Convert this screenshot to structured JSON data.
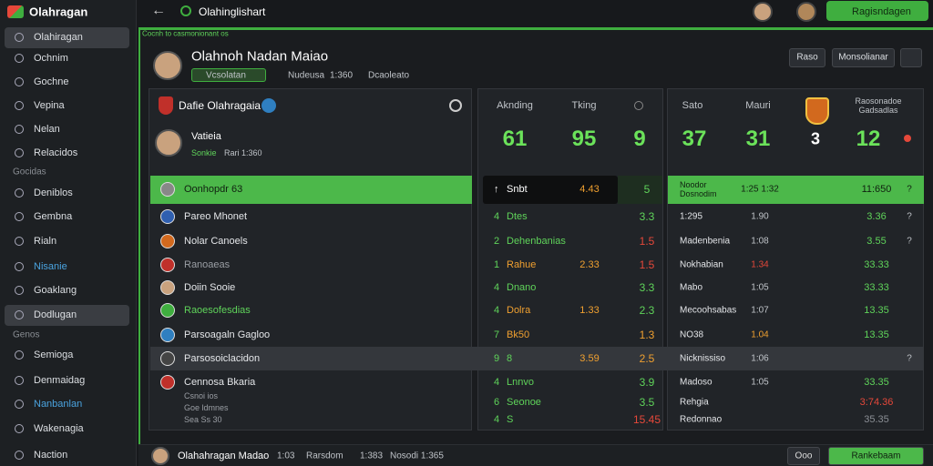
{
  "topbar": {
    "logo": "Olahragan",
    "title": "Olahinglishart",
    "button": "Ragisndagen"
  },
  "sidebar": [
    {
      "label": "Olahiragan",
      "active": true
    },
    {
      "label": "Ochnim"
    },
    {
      "label": "Gochne"
    },
    {
      "label": "Vepina"
    },
    {
      "label": "Nelan"
    },
    {
      "label": "Relacidos"
    },
    {
      "section": "Gocidas"
    },
    {
      "label": "Deniblos"
    },
    {
      "label": "Gembna"
    },
    {
      "label": "Rialn"
    },
    {
      "label": "Nisanie",
      "color": "#4aa3df"
    },
    {
      "label": "Goaklang"
    },
    {
      "label": "Dodlugan",
      "active": true
    },
    {
      "section": "Genos"
    },
    {
      "label": "Semioga"
    },
    {
      "label": "Denmaidag"
    },
    {
      "label": "Nanbanlan",
      "color": "#4aa3df"
    },
    {
      "label": "Wakenagia"
    },
    {
      "label": "Naction"
    }
  ],
  "banner": "Cocnh to casmonionant os",
  "profile": {
    "name": "Olahnoh Nadan Maiao",
    "tags": [
      "Vcsolatan",
      "Nudeusa",
      "1:360",
      "Dcaoleato"
    ],
    "buttons": [
      "Raso",
      "Monsolianar"
    ]
  },
  "left_panel": {
    "title": "Dafie Olahragaia",
    "player": "Vatieia",
    "player_sub": [
      "Sonkie",
      "Rari 1:360"
    ],
    "rows": [
      {
        "label": "Oonhopdr 63",
        "highlight": true
      },
      {
        "label": "Pareo Mhonet"
      },
      {
        "label": "Nolar Canoels"
      },
      {
        "label": "Ranoaeas",
        "color": "#9a9ea4"
      },
      {
        "label": "Doiin Sooie"
      },
      {
        "label": "Raoesofesdias",
        "color": "#5fd35a"
      },
      {
        "label": "Parsoagaln Gagloo"
      },
      {
        "label": "Parsosoiclacidon"
      },
      {
        "label": "Cennosa Bkaria",
        "sub": [
          "Csnoi ios",
          "Goe ldmnes",
          "Sea Ss 30"
        ]
      }
    ]
  },
  "middle_panel": {
    "headers": [
      "Aknding",
      "Tking"
    ],
    "big": [
      "61",
      "95",
      "9"
    ],
    "rows": [
      {
        "rank": "↑",
        "name": "Snbt",
        "a": "4.43",
        "b": "5",
        "highlight": true
      },
      {
        "rank": "4",
        "name": "Dtes",
        "b": "3.3"
      },
      {
        "rank": "2",
        "name": "Dehenbanias",
        "b": "1.5",
        "b_color": "#e5483a"
      },
      {
        "rank": "1",
        "name": "Rahue",
        "a": "2.33",
        "b": "1.5",
        "b_color": "#e5483a",
        "name_color": "#f0a030"
      },
      {
        "rank": "4",
        "name": "Dnano",
        "b": "3.3"
      },
      {
        "rank": "4",
        "name": "Dolra",
        "a": "1.33",
        "b": "2.3",
        "name_color": "#f0a030"
      },
      {
        "rank": "7",
        "name": "Bk50",
        "b": "1.3",
        "b_color": "#f0a030",
        "name_color": "#f0a030"
      },
      {
        "rank": "9",
        "name": "8",
        "a": "3.59",
        "b": "2.5",
        "b_color": "#f0a030"
      },
      {
        "rank": "4",
        "name": "Lnnvo",
        "b": "3.9"
      },
      {
        "rank": "6",
        "name": "Seonoe",
        "b": "3.5"
      },
      {
        "rank": "4",
        "name": "S",
        "b": "15.45",
        "b_color": "#e5483a"
      }
    ]
  },
  "right_panel": {
    "headers": [
      "Sato",
      "Mauri",
      "Raosonadoe Gadsadlas"
    ],
    "big": [
      "37",
      "31",
      "3",
      "12"
    ],
    "rows": [
      {
        "name": "Noodor Dosnodim",
        "a": "1:25 1:32",
        "b": "11:650",
        "c": "?",
        "highlight": true
      },
      {
        "name": "1:295",
        "a": "1.90",
        "b": "3.36",
        "c": "?"
      },
      {
        "name": "Madenbenia",
        "a": "1:08",
        "b": "3.55",
        "c": "?"
      },
      {
        "name": "Nokhabian",
        "a": "1.34",
        "a_color": "#e5483a",
        "b": "33.33"
      },
      {
        "name": "Mabo",
        "a": "1:05",
        "b": "33.33"
      },
      {
        "name": "Mecoohsabas",
        "a": "1:07",
        "b": "13.35"
      },
      {
        "name": "NO38",
        "a": "1.04",
        "a_color": "#f0a030",
        "b": "13.35"
      },
      {
        "name": "Nicknissiso",
        "a": "1:06",
        "c": "?"
      },
      {
        "name": "Madoso",
        "a": "1:05",
        "b": "33.35"
      },
      {
        "name": "Rehgia",
        "b": "3:74.36",
        "b_color": "#e5483a"
      },
      {
        "name": "Redonnao",
        "b": "35.35",
        "b_color": "#8a8e94"
      }
    ]
  },
  "footer": {
    "name": "Olahahragan Madao",
    "stats": [
      "1:03",
      "Rarsdom",
      "1:383",
      "Nosodi 1:365"
    ],
    "buttons": [
      "Ooo",
      "Rankebaam"
    ]
  }
}
